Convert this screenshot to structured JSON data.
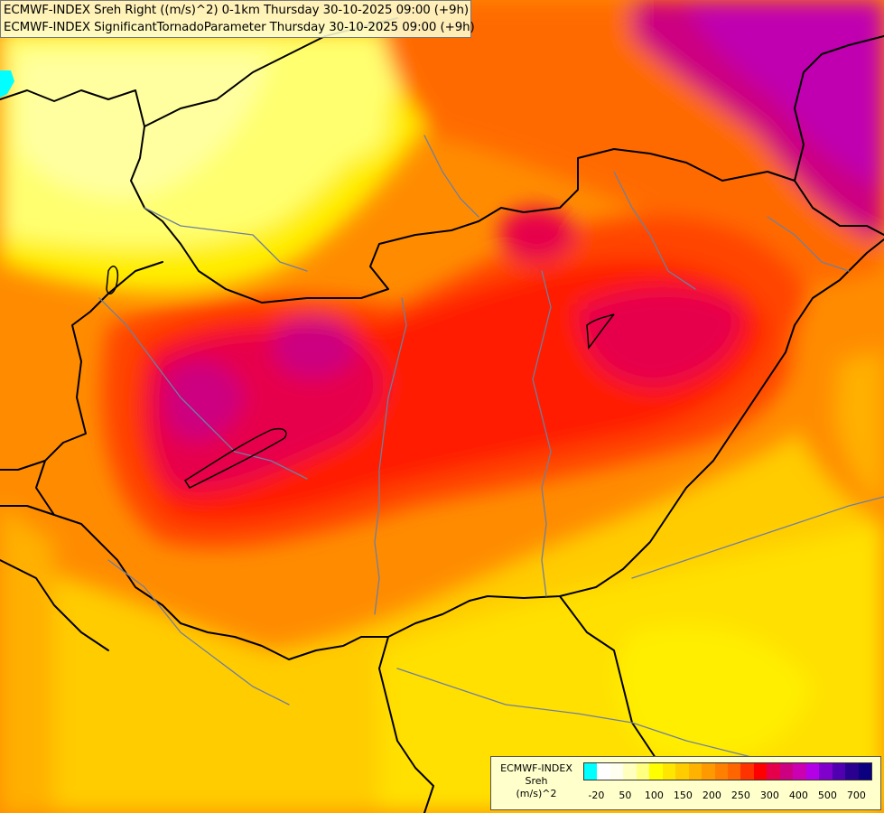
{
  "title": {
    "line1": "ECMWF-INDEX Sreh Right ((m/s)^2) 0-1km Thursday 30-10-2025 09:00 (+9h)",
    "line2": "ECMWF-INDEX SignificantTornadoParameter Thursday 30-10-2025 09:00 (+9h)"
  },
  "legend": {
    "source": "ECMWF-INDEX",
    "variable": "Sreh",
    "unit": "(m/s)^2",
    "colors": [
      "#00ffff",
      "#ffffff",
      "#fffff0",
      "#ffffbe",
      "#ffff80",
      "#ffff00",
      "#ffe600",
      "#ffcc00",
      "#ffb300",
      "#ff9900",
      "#ff8000",
      "#ff6600",
      "#ff3300",
      "#ff0000",
      "#e6004c",
      "#cc0080",
      "#cc00b3",
      "#b300e6",
      "#8000cc",
      "#5000b0",
      "#2a0090",
      "#0a0080"
    ],
    "ticks": [
      "-20",
      "50",
      "100",
      "150",
      "200",
      "250",
      "300",
      "400",
      "500",
      "700"
    ]
  },
  "field": {
    "background_color": "#ff8c00",
    "colors": {
      "pale_yellow": "#ffffa0",
      "light_yellow": "#ffff70",
      "yellow": "#ffee00",
      "gold": "#ffcc00",
      "amber": "#ffb000",
      "orange": "#ff8c00",
      "dark_orange": "#ff6a00",
      "red_orange": "#ff4400",
      "red": "#ff1a00",
      "crimson": "#e6004c",
      "magenta": "#cc0080",
      "violet": "#c000b0"
    }
  }
}
